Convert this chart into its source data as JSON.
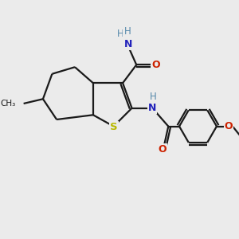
{
  "background_color": "#ebebeb",
  "bond_color": "#1a1a1a",
  "S_color": "#b8b800",
  "N_color": "#2222bb",
  "O_color": "#cc2200",
  "H_color": "#5588aa",
  "figsize": [
    3.0,
    3.0
  ],
  "dpi": 100,
  "xlim": [
    0,
    10
  ],
  "ylim": [
    0,
    10
  ]
}
